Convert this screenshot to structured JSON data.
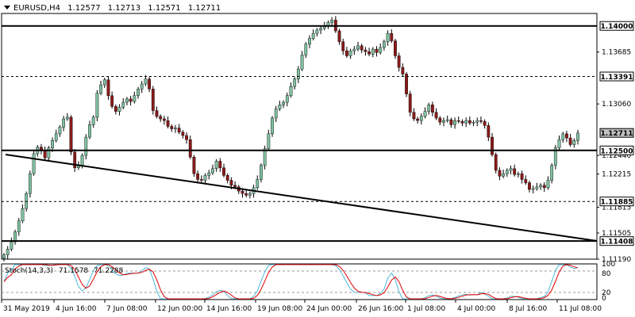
{
  "header": {
    "symbol_tf": "EURUSD,H4",
    "open": "1.12577",
    "high": "1.12713",
    "low": "1.12571",
    "close": "1.12711"
  },
  "oscillator": {
    "name": "Stoch(14,3,3)",
    "main_value": "71.1578",
    "signal_value": "71.2288",
    "level_labels": [
      "80",
      "20"
    ],
    "main_color": "#4fb8d8",
    "signal_color": "#e00000"
  },
  "colors": {
    "bull": "#7fbf9f",
    "bear": "#8b1a1a",
    "frame": "#000000"
  },
  "chart_data": {
    "type": "candlestick",
    "symbol": "EURUSD",
    "timeframe": "H4",
    "ylim": [
      1.1119,
      1.1415
    ],
    "y_ticks": [
      "1.13685",
      "1.13060",
      "1.12440",
      "1.12215",
      "1.11815",
      "1.11505",
      "1.11190"
    ],
    "x_ticks": [
      "31 May 2019",
      "4 Jun 16:00",
      "7 Jun 08:00",
      "12 Jun 00:00",
      "14 Jun 16:00",
      "19 Jun 08:00",
      "24 Jun 00:00",
      "26 Jun 16:00",
      "1 Jul 08:00",
      "4 Jul 00:00",
      "8 Jul 16:00",
      "11 Jul 08:00"
    ],
    "horizontal_levels": [
      {
        "label": "1.14000",
        "value": 1.14,
        "style": "solid"
      },
      {
        "label": "1.13391",
        "value": 1.13391,
        "style": "dashed"
      },
      {
        "label": "1.12711",
        "value": 1.12711,
        "style": "price"
      },
      {
        "label": "1.12500",
        "value": 1.125,
        "style": "solid"
      },
      {
        "label": "1.11885",
        "value": 1.11885,
        "style": "dashed"
      },
      {
        "label": "1.11408",
        "value": 1.11408,
        "style": "solid"
      }
    ],
    "trendline": {
      "start": {
        "x_index": 0,
        "y": 1.1245
      },
      "end": {
        "x_index": 185,
        "y": 1.1141
      }
    },
    "close_path": [
      1.1124,
      1.1131,
      1.114,
      1.1152,
      1.1165,
      1.118,
      1.1198,
      1.1222,
      1.1246,
      1.1254,
      1.125,
      1.1241,
      1.1253,
      1.1262,
      1.127,
      1.1278,
      1.1288,
      1.129,
      1.1248,
      1.1229,
      1.1232,
      1.1244,
      1.1266,
      1.1281,
      1.129,
      1.1319,
      1.1329,
      1.1335,
      1.1316,
      1.1303,
      1.1297,
      1.1302,
      1.1308,
      1.1312,
      1.1309,
      1.1316,
      1.1324,
      1.133,
      1.1336,
      1.1324,
      1.1298,
      1.1291,
      1.1288,
      1.1286,
      1.1279,
      1.1276,
      1.1277,
      1.1272,
      1.1268,
      1.1263,
      1.1242,
      1.1222,
      1.1215,
      1.1214,
      1.122,
      1.1223,
      1.1228,
      1.1237,
      1.1229,
      1.122,
      1.1214,
      1.1208,
      1.1206,
      1.1201,
      1.1198,
      1.1196,
      1.1198,
      1.1205,
      1.1215,
      1.1232,
      1.1252,
      1.127,
      1.1289,
      1.13,
      1.1305,
      1.1308,
      1.1316,
      1.1327,
      1.1336,
      1.1348,
      1.1365,
      1.1378,
      1.1385,
      1.1391,
      1.1395,
      1.1397,
      1.14,
      1.1404,
      1.1407,
      1.1394,
      1.1381,
      1.137,
      1.1364,
      1.137,
      1.1372,
      1.1376,
      1.1371,
      1.1369,
      1.1366,
      1.1372,
      1.1368,
      1.1374,
      1.1381,
      1.1391,
      1.1382,
      1.1364,
      1.135,
      1.1342,
      1.1318,
      1.1296,
      1.1288,
      1.1286,
      1.1291,
      1.1297,
      1.1305,
      1.1296,
      1.1289,
      1.1284,
      1.1286,
      1.1287,
      1.1281,
      1.1286,
      1.1285,
      1.1283,
      1.1286,
      1.1283,
      1.1284,
      1.1286,
      1.1285,
      1.128,
      1.1266,
      1.1245,
      1.1226,
      1.1219,
      1.1222,
      1.1226,
      1.1228,
      1.1221,
      1.1222,
      1.1215,
      1.1211,
      1.1203,
      1.1204,
      1.1206,
      1.1208,
      1.1205,
      1.1214,
      1.1232,
      1.1253,
      1.1263,
      1.127,
      1.1265,
      1.1257,
      1.1262,
      1.1271
    ]
  },
  "axis_labels": {
    "price_ticks": [
      "1.13685",
      "1.13060",
      "1.12440",
      "1.12215",
      "1.11815",
      "1.11505",
      "1.11190"
    ],
    "levels": [
      "1.14000",
      "1.13391",
      "1.12711",
      "1.12500",
      "1.11885",
      "1.11408"
    ],
    "osc_levels": [
      "100",
      "80",
      "20",
      "0"
    ]
  }
}
